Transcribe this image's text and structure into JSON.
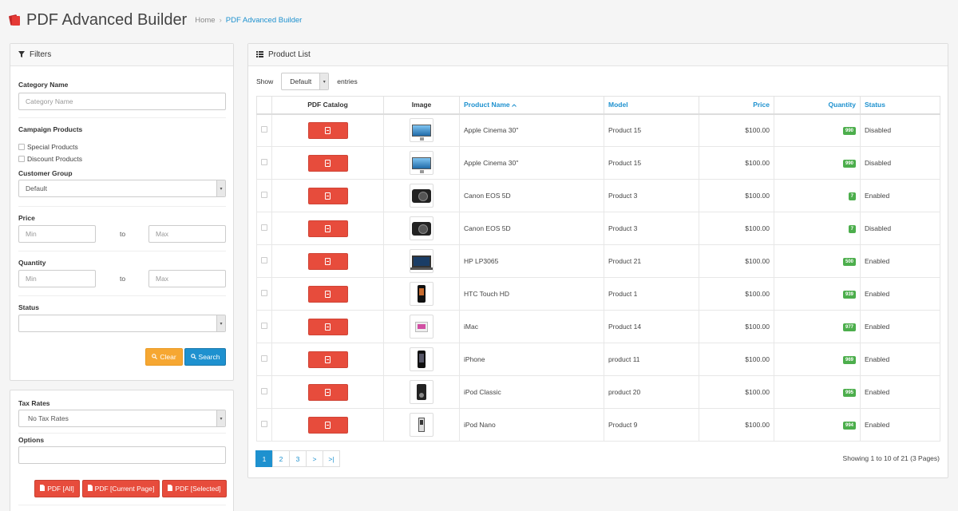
{
  "header": {
    "title": "PDF Advanced Builder",
    "breadcrumb": [
      "Home",
      "PDF Advanced Builder"
    ],
    "separator": "›"
  },
  "filters": {
    "heading": "Filters",
    "category_label": "Category Name",
    "category_placeholder": "Category Name",
    "campaign_label": "Campaign Products",
    "special_label": "Special Products",
    "discount_label": "Discount Products",
    "customer_group_label": "Customer Group",
    "customer_group_value": "Default",
    "price_label": "Price",
    "price_min": "Min",
    "price_max": "Max",
    "to_text": "to",
    "quantity_label": "Quantity",
    "qty_min": "Min",
    "qty_max": "Max",
    "status_label": "Status",
    "status_value": "",
    "clear_label": "Clear",
    "search_label": "Search"
  },
  "export": {
    "tax_label": "Tax Rates",
    "tax_value": "No Tax Rates",
    "options_label": "Options",
    "options_value": "",
    "pdf_all": "PDF [All]",
    "pdf_current": "PDF [Current Page]",
    "pdf_selected": "PDF [Selected]"
  },
  "products": {
    "heading": "Product List",
    "show_label": "Show",
    "entries_value": "Default",
    "entries_label": "entries",
    "columns": {
      "pdf": "PDF Catalog",
      "image": "Image",
      "name": "Product Name",
      "model": "Model",
      "price": "Price",
      "quantity": "Quantity",
      "status": "Status"
    },
    "rows": [
      {
        "image": "monitor-thumbnail",
        "name": "Apple Cinema 30\"",
        "model": "Product 15",
        "price": "$100.00",
        "quantity": "990",
        "status": "Disabled"
      },
      {
        "image": "monitor-thumbnail",
        "name": "Apple Cinema 30\"",
        "model": "Product 15",
        "price": "$100.00",
        "quantity": "990",
        "status": "Disabled"
      },
      {
        "image": "camera-thumbnail",
        "name": "Canon EOS 5D",
        "model": "Product 3",
        "price": "$100.00",
        "quantity": "7",
        "status": "Enabled"
      },
      {
        "image": "camera-thumbnail",
        "name": "Canon EOS 5D",
        "model": "Product 3",
        "price": "$100.00",
        "quantity": "7",
        "status": "Disabled"
      },
      {
        "image": "laptop-thumbnail",
        "name": "HP LP3065",
        "model": "Product 21",
        "price": "$100.00",
        "quantity": "500",
        "status": "Enabled"
      },
      {
        "image": "phone-thumbnail",
        "name": "HTC Touch HD",
        "model": "Product 1",
        "price": "$100.00",
        "quantity": "939",
        "status": "Enabled"
      },
      {
        "image": "imac-thumbnail",
        "name": "iMac",
        "model": "Product 14",
        "price": "$100.00",
        "quantity": "977",
        "status": "Enabled"
      },
      {
        "image": "iphone-thumbnail",
        "name": "iPhone",
        "model": "product 11",
        "price": "$100.00",
        "quantity": "969",
        "status": "Enabled"
      },
      {
        "image": "ipod-thumbnail",
        "name": "iPod Classic",
        "model": "product 20",
        "price": "$100.00",
        "quantity": "995",
        "status": "Enabled"
      },
      {
        "image": "nano-thumbnail",
        "name": "iPod Nano",
        "model": "Product 9",
        "price": "$100.00",
        "quantity": "994",
        "status": "Enabled"
      }
    ],
    "pagination": [
      "1",
      "2",
      "3",
      ">",
      ">|"
    ],
    "showing": "Showing 1 to 10 of 21 (3 Pages)"
  },
  "icons": {
    "filter": "filter-icon",
    "list": "list-icon",
    "search": "search-icon",
    "pdf": "pdf-file-icon",
    "caret": "caret-down-icon",
    "sort": "sort-asc-icon"
  },
  "colors": {
    "primary": "#1e91cf",
    "danger": "#e74c3c",
    "warning": "#f6a732",
    "success": "#4cae4c"
  }
}
